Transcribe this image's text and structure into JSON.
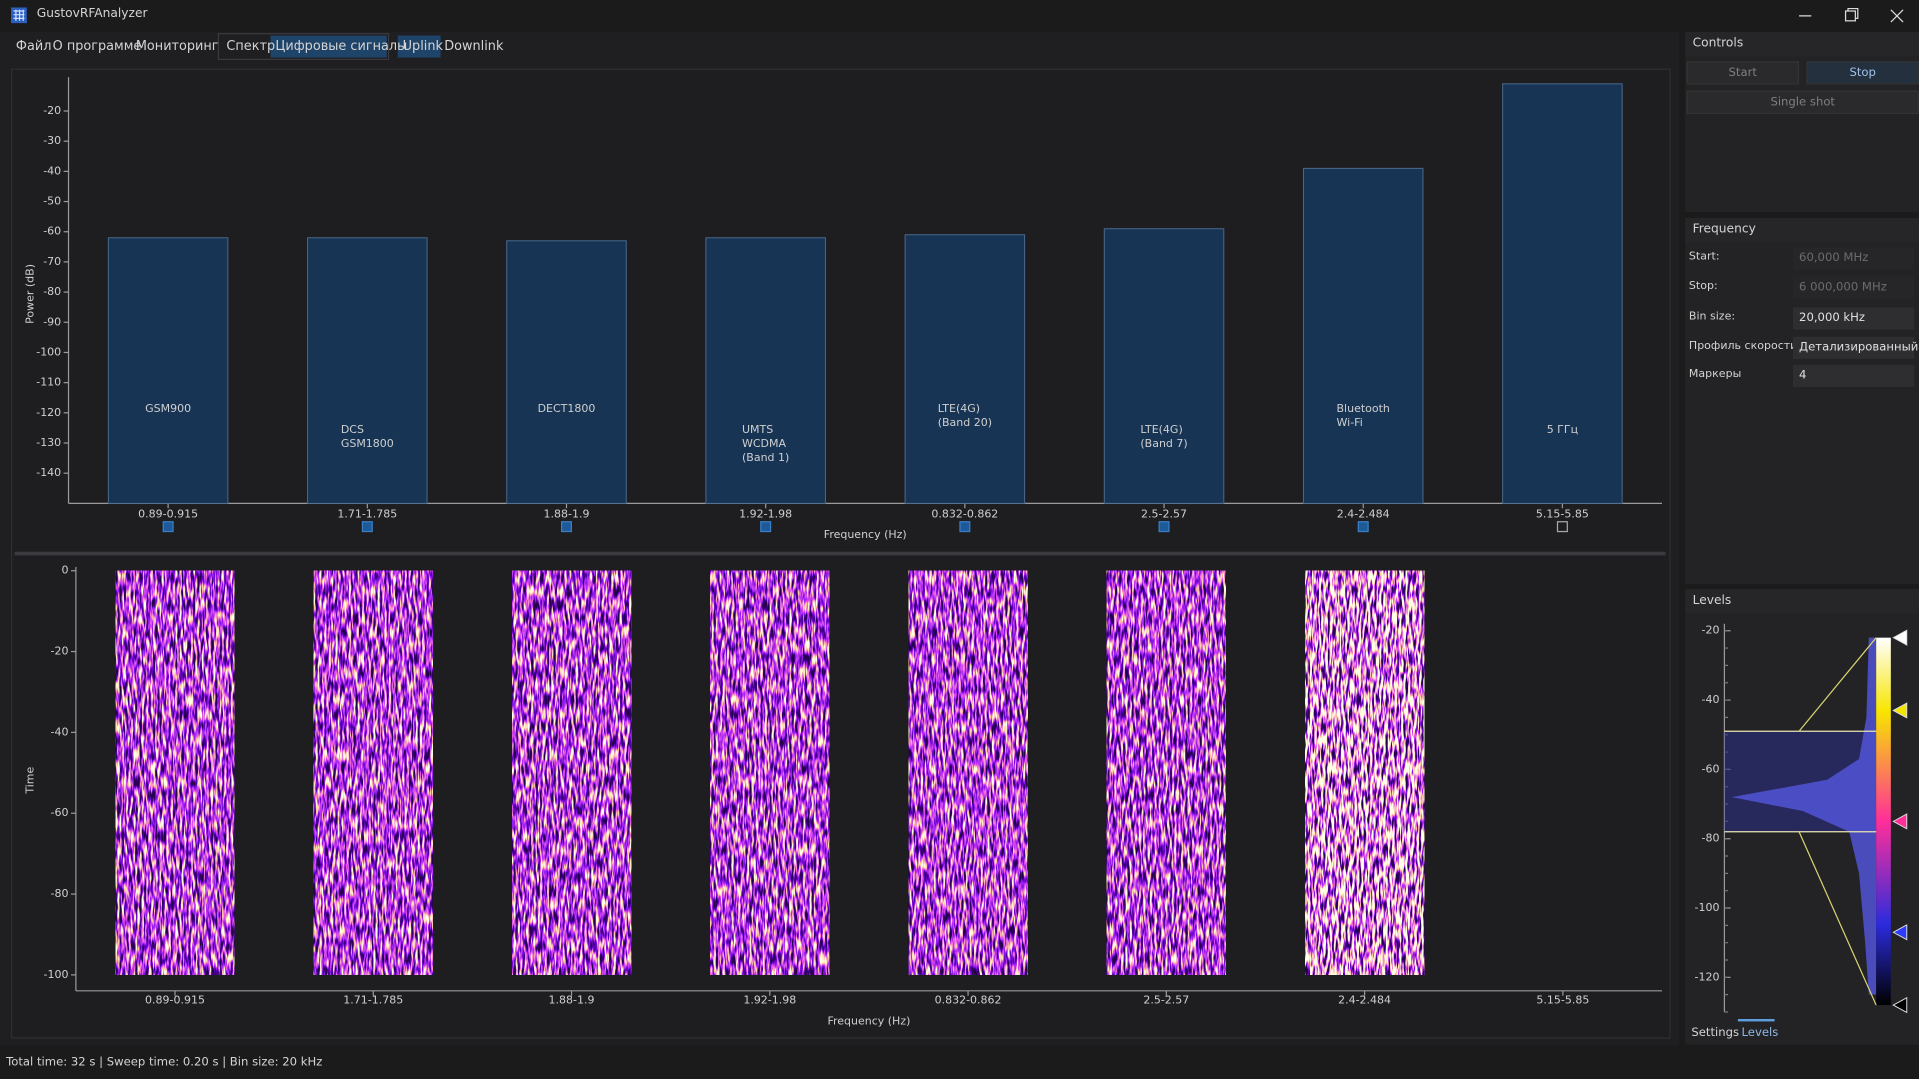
{
  "window": {
    "title": "GustovRFAnalyzer"
  },
  "menu": [
    "Файл",
    "О программе",
    "Мониторинг"
  ],
  "mode_tabs": [
    "Спектр",
    "Цифровые сигналы"
  ],
  "link_tabs": [
    "Uplink",
    "Downlink"
  ],
  "chart_data": [
    {
      "type": "bar",
      "ylabel": "Power (dB)",
      "xlabel": "Frequency (Hz)",
      "categories": [
        "0.89-0.915",
        "1.71-1.785",
        "1.88-1.9",
        "1.92-1.98",
        "0.832-0.862",
        "2.5-2.57",
        "2.4-2.484",
        "5.15-5.85"
      ],
      "bar_labels": [
        [
          "GSM900"
        ],
        [
          "DCS",
          "GSM1800"
        ],
        [
          "DECT1800"
        ],
        [
          "UMTS",
          "WCDMA",
          "(Band 1)"
        ],
        [
          "LTE(4G)",
          "(Band 20)"
        ],
        [
          "LTE(4G)",
          "(Band 7)"
        ],
        [
          "Bluetooth",
          "Wi-Fi"
        ],
        [
          "5 ГГц"
        ]
      ],
      "values": [
        -62,
        -62,
        -63,
        -62,
        -61,
        -59,
        -39,
        -11
      ],
      "enabled": [
        true,
        true,
        true,
        true,
        true,
        true,
        true,
        false
      ],
      "color": "#173454",
      "ylim": [
        -150,
        -10
      ],
      "yticks": [
        -20,
        -30,
        -40,
        -50,
        -60,
        -70,
        -80,
        -90,
        -100,
        -110,
        -120,
        -130,
        -140
      ]
    },
    {
      "type": "waterfall",
      "ylabel": "Time",
      "xlabel": "Frequency (Hz)",
      "categories": [
        "0.89-0.915",
        "1.71-1.785",
        "1.88-1.9",
        "1.92-1.98",
        "0.832-0.862",
        "2.5-2.57",
        "2.4-2.484",
        "5.15-5.85"
      ],
      "active": [
        true,
        true,
        true,
        true,
        true,
        true,
        true,
        false
      ],
      "ylim": [
        -100,
        0
      ],
      "yticks": [
        0,
        -20,
        -40,
        -60,
        -80,
        -100
      ]
    }
  ],
  "controls": {
    "title": "Controls",
    "buttons": [
      "Start",
      "Stop",
      "Single shot"
    ]
  },
  "frequency": {
    "title": "Frequency",
    "fields": [
      {
        "label": "Start:",
        "value": "60,000 MHz"
      },
      {
        "label": "Stop:",
        "value": "6 000,000 MHz"
      },
      {
        "label": "Bin size:",
        "value": "20,000 kHz"
      },
      {
        "label": "Профиль скорости",
        "value": "Детализированный"
      },
      {
        "label": "Маркеры",
        "value": "4"
      }
    ]
  },
  "levels": {
    "title": "Levels",
    "ylim": [
      -130,
      -18
    ],
    "yticks": [
      -20,
      -40,
      -60,
      -80,
      -100,
      -120
    ],
    "markers": [
      -22,
      -43,
      -75,
      -107,
      -128
    ],
    "marker_colors": [
      "#ffffff",
      "#f5e400",
      "#ff2e9a",
      "#2b3cff",
      "#000000"
    ],
    "range": [
      -49,
      -78
    ]
  },
  "side_tabs": [
    "Settings",
    "Levels"
  ],
  "status": "Total time: 32 s | Sweep time: 0.20 s | Bin size: 20 kHz"
}
